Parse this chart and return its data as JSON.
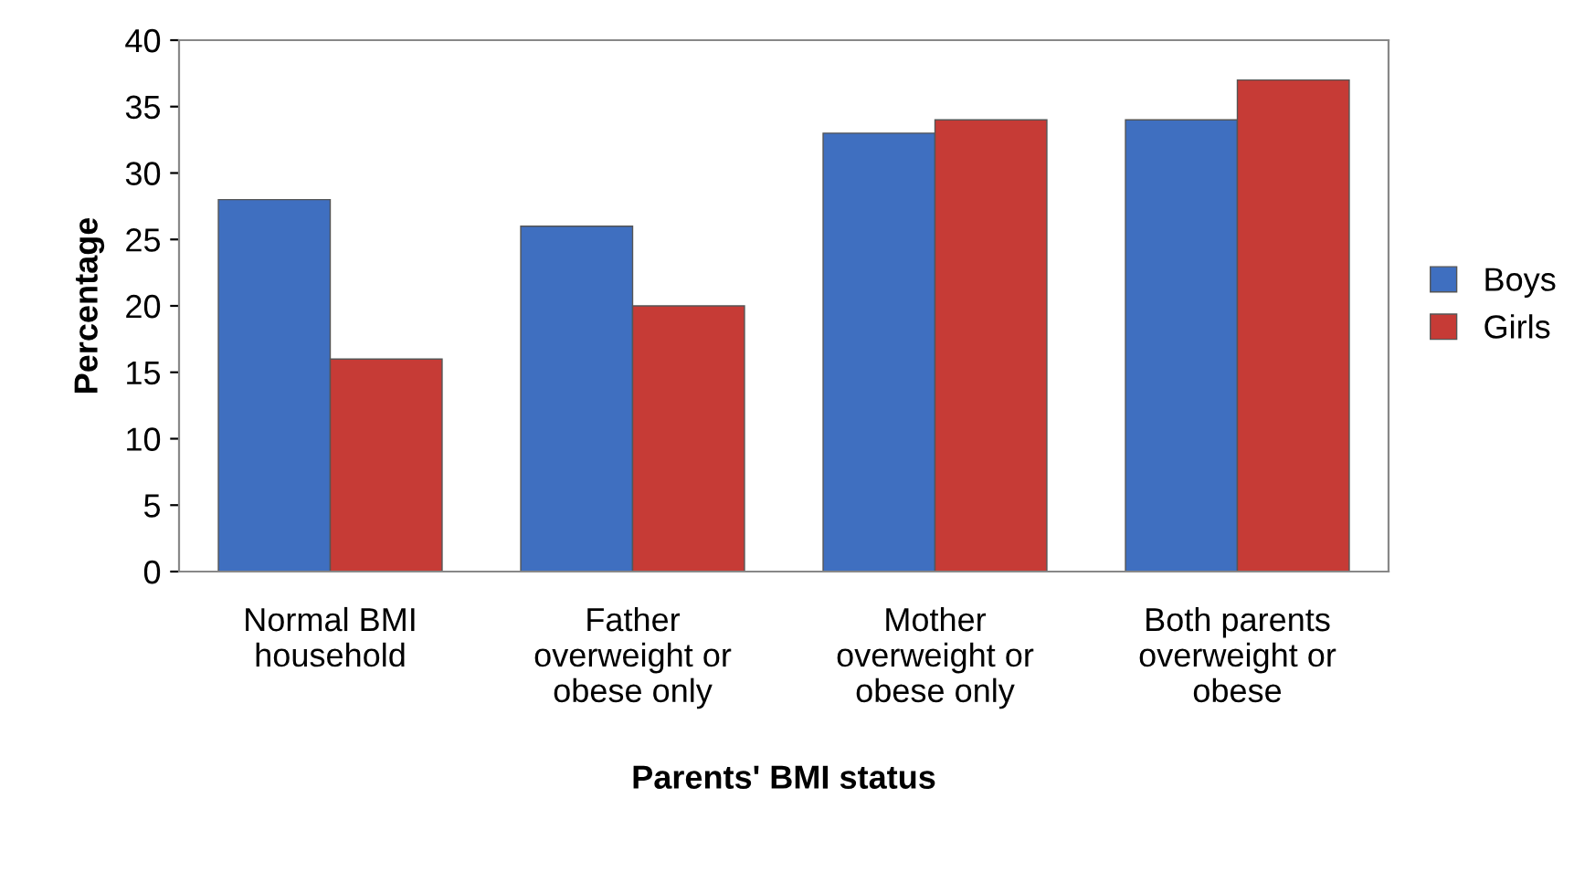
{
  "chart_data": {
    "type": "bar",
    "xlabel": "Parents' BMI status",
    "ylabel": "Percentage",
    "categories": [
      "Normal BMI\nhousehold",
      "Father\noverweight or\nobese only",
      "Mother\noverweight or\nobese only",
      "Both parents\noverweight or\nobese"
    ],
    "series": [
      {
        "name": "Boys",
        "color": "#3f6fc0",
        "values": [
          28,
          26,
          33,
          34
        ]
      },
      {
        "name": "Girls",
        "color": "#c63b36",
        "values": [
          16,
          20,
          34,
          37
        ]
      }
    ],
    "ylim": [
      0,
      40
    ],
    "yticks": [
      0,
      5,
      10,
      15,
      20,
      25,
      30,
      35,
      40
    ],
    "grid": false,
    "legend": "right"
  }
}
